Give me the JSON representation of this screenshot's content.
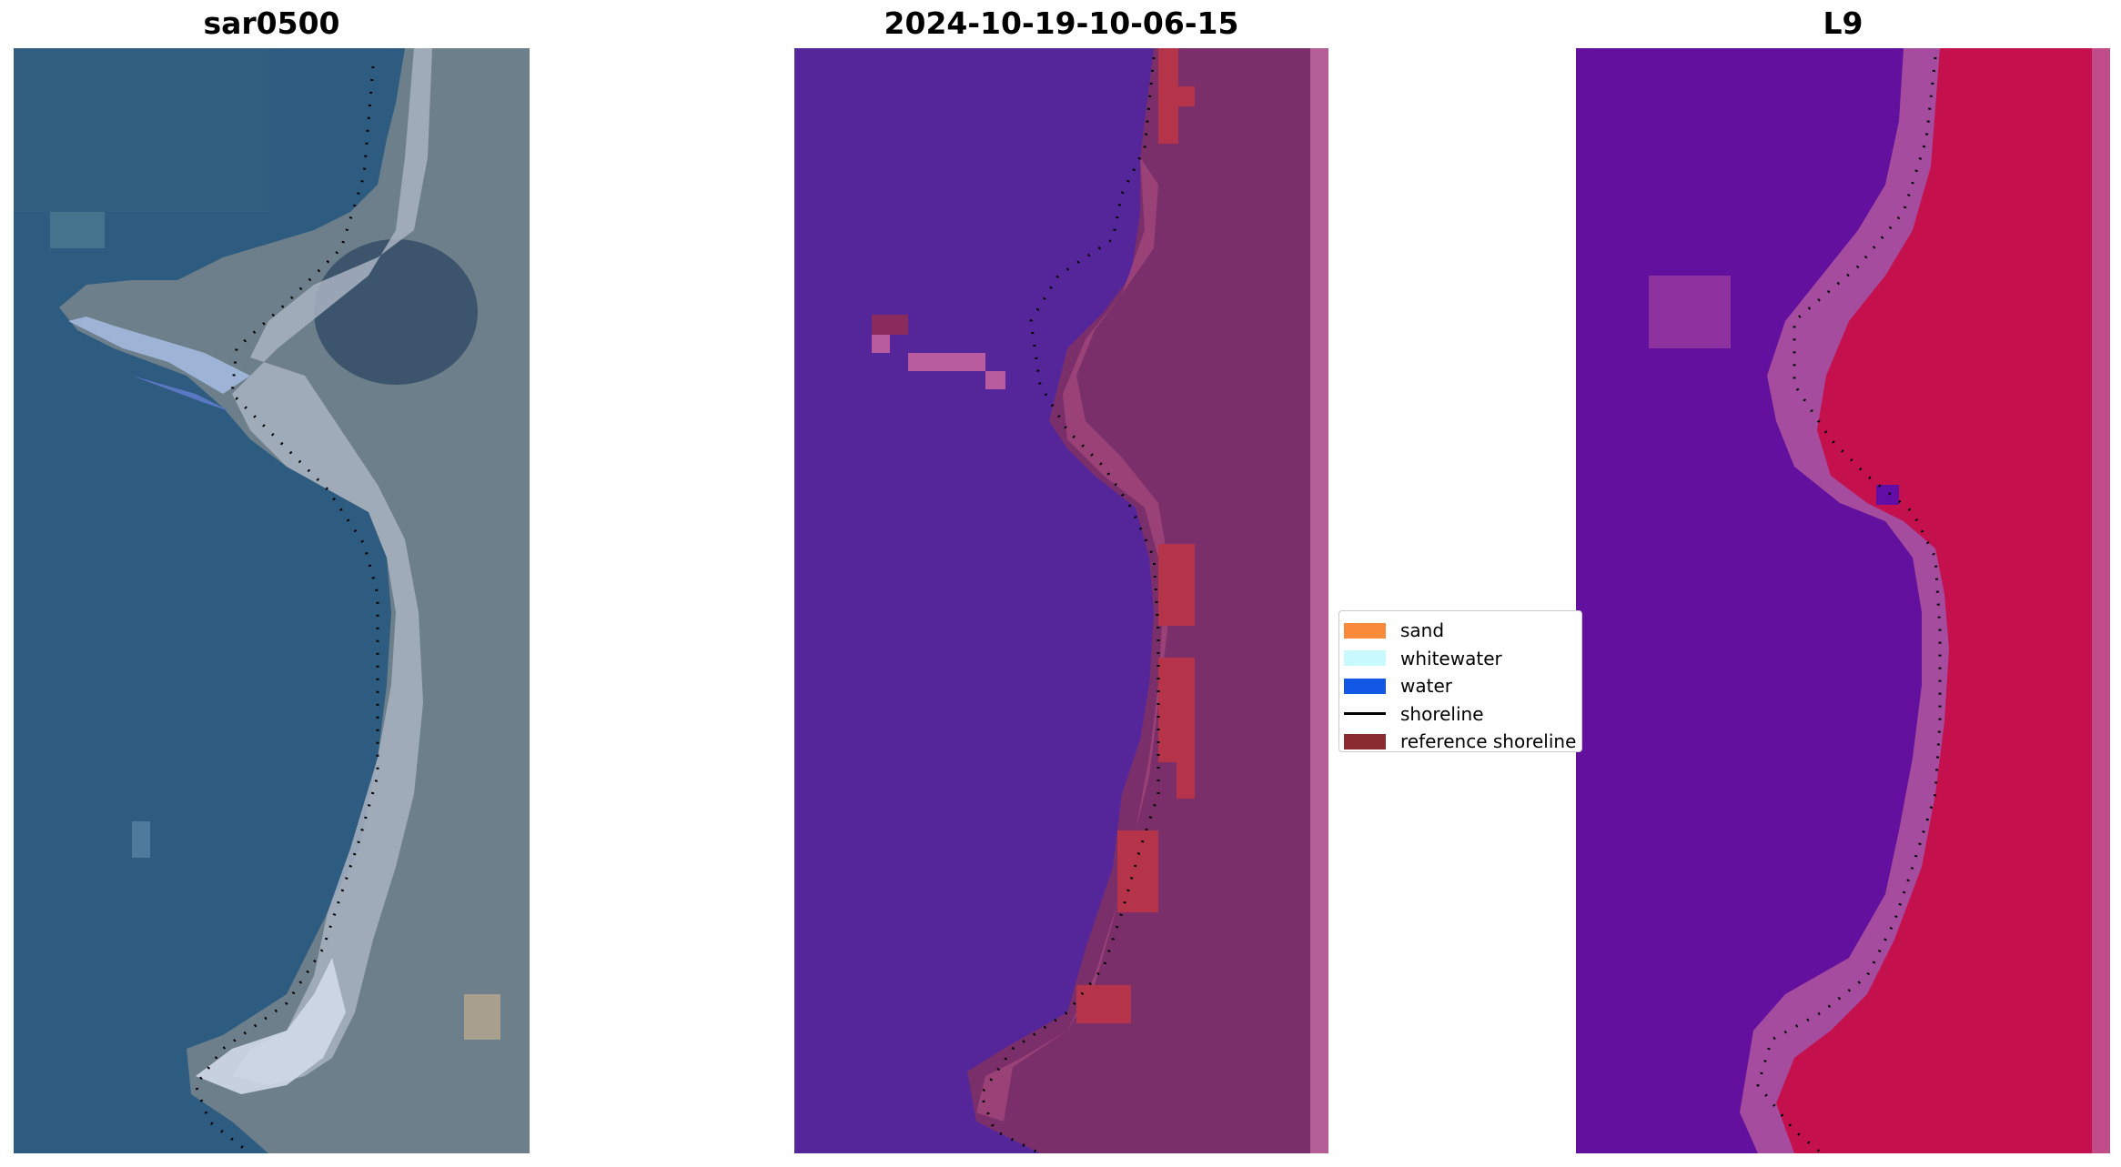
{
  "panels": [
    {
      "title": "sar0500",
      "image": "RGB satellite image of coastline"
    },
    {
      "title": "2024-10-19-10-06-15",
      "image": "classified image"
    },
    {
      "title": "L9",
      "image": "MNDWI image"
    }
  ],
  "legend": {
    "items": [
      {
        "label": "sand",
        "color": "#f98a3a",
        "kind": "patch"
      },
      {
        "label": "whitewater",
        "color": "#c8fafd",
        "kind": "patch"
      },
      {
        "label": "water",
        "color": "#1357e5",
        "kind": "patch"
      },
      {
        "label": "shoreline",
        "color": "#000000",
        "kind": "line"
      },
      {
        "label": "reference shoreline",
        "color": "#8a2b32",
        "kind": "patch"
      }
    ]
  },
  "colors": {
    "ocean_rgb": "#2e5b80",
    "land_rgb": "#6d7f8a",
    "class_water": "#55259a",
    "class_land": "#7b2f6a",
    "mndwi_water": "#62109d",
    "mndwi_land": "#c4104d"
  }
}
